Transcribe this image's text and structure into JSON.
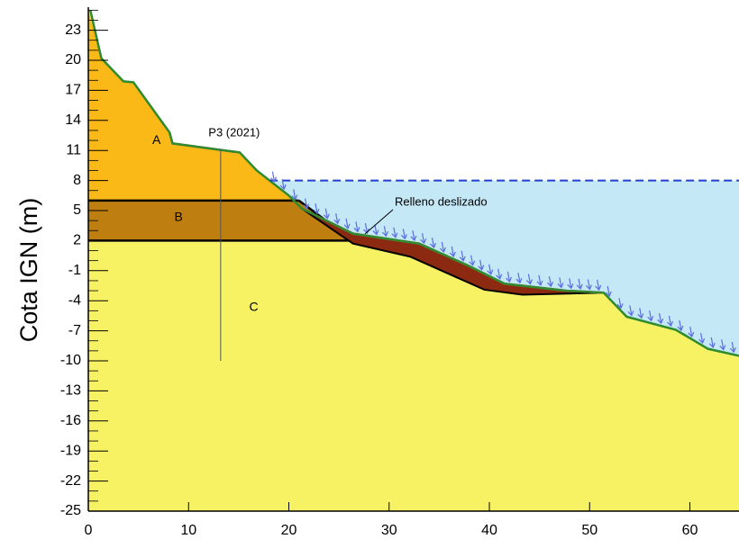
{
  "chart_data": {
    "type": "cross-section",
    "y_label": "Cota IGN (m)",
    "xlim": [
      0,
      64.9
    ],
    "ylim": [
      -25,
      25.3
    ],
    "xticks": [
      0,
      10,
      20,
      30,
      40,
      50,
      60
    ],
    "yticks": [
      -25,
      -22,
      -19,
      -16,
      -13,
      -10,
      -7,
      -4,
      -1,
      2,
      5,
      8,
      11,
      14,
      17,
      20,
      23
    ],
    "water_level": 8,
    "water_color": "#c5e8f7",
    "surface": {
      "color": "#2e8b2e",
      "x": [
        0.2,
        1.3,
        3.5,
        4.5,
        8.1,
        8.4,
        15.1,
        16.8,
        20.0,
        21.3,
        26.4,
        33.0,
        37.9,
        41.5,
        47.7,
        51.4,
        53.7,
        58.6,
        61.8,
        64.9
      ],
      "y": [
        25.0,
        20.2,
        17.9,
        17.8,
        12.8,
        11.7,
        10.8,
        9.0,
        6.5,
        5.2,
        2.7,
        1.7,
        -0.5,
        -2.3,
        -3.0,
        -3.2,
        -5.6,
        -6.9,
        -8.8,
        -9.5
      ]
    },
    "layers": [
      {
        "name": "C",
        "color": "#f7f263",
        "ground": true
      },
      {
        "name": "A",
        "color": "#fbb917",
        "x": [
          0,
          0,
          1.3,
          3.5,
          4.5,
          8.1,
          8.4,
          15.1,
          16.8,
          20.0,
          20.6
        ],
        "y": [
          6,
          25.0,
          20.2,
          17.9,
          17.8,
          12.8,
          11.7,
          10.8,
          9.0,
          6.5,
          6.0
        ]
      },
      {
        "name": "B",
        "color": "#bf7f10",
        "x": [
          0,
          21.0,
          26.4,
          0
        ],
        "y": [
          6,
          6,
          2,
          2
        ]
      }
    ],
    "slide": {
      "label": "Relleno deslizado",
      "color": "#8b2a10",
      "edge": "#d4505a",
      "x": [
        21.3,
        26.4,
        33.0,
        37.9,
        41.5,
        47.7,
        51.4,
        43.3,
        39.5,
        32.1,
        26.4
      ],
      "y": [
        5.2,
        2.7,
        1.7,
        -0.5,
        -2.3,
        -3.0,
        -3.2,
        -3.4,
        -2.9,
        0.4,
        1.7
      ]
    },
    "fill_profile": {
      "x": [
        8.1,
        8.4,
        15.1
      ],
      "y": [
        12.8,
        11.7,
        10.8
      ]
    },
    "borehole": {
      "label": "P3 (2021)",
      "x": 13.2,
      "y": [
        11.1,
        -10.0
      ]
    }
  }
}
